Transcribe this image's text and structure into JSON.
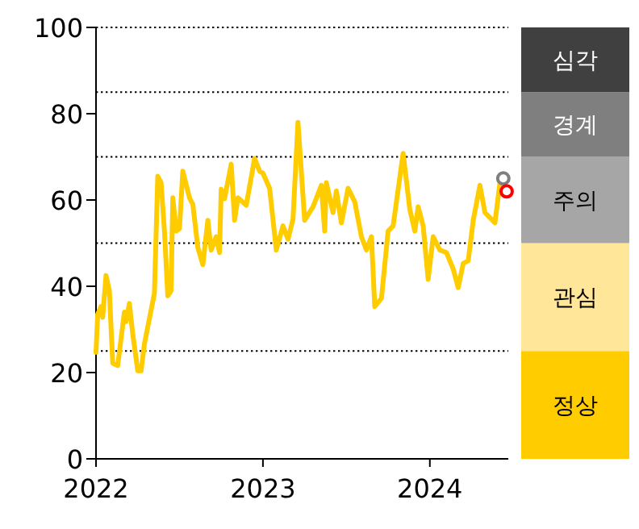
{
  "chart_data": [
    {
      "type": "line",
      "xlim": [
        2022,
        2024.47
      ],
      "xticks": [
        2022,
        2023,
        2024
      ],
      "ylim": [
        0,
        100
      ],
      "yticks": [
        0,
        20,
        40,
        60,
        80,
        100
      ],
      "line_style": "solid",
      "series": [
        {
          "color": "#ffcc00",
          "x": [
            2022.0,
            2022.01,
            2022.03,
            2022.04,
            2022.06,
            2022.08,
            2022.1,
            2022.13,
            2022.17,
            2022.18,
            2022.2,
            2022.22,
            2022.25,
            2022.27,
            2022.29,
            2022.35,
            2022.37,
            2022.39,
            2022.41,
            2022.43,
            2022.45,
            2022.46,
            2022.48,
            2022.5,
            2022.52,
            2022.56,
            2022.58,
            2022.61,
            2022.64,
            2022.67,
            2022.69,
            2022.72,
            2022.74,
            2022.75,
            2022.77,
            2022.81,
            2022.83,
            2022.85,
            2022.9,
            2022.95,
            2022.98,
            2023.0,
            2023.04,
            2023.08,
            2023.12,
            2023.15,
            2023.18,
            2023.21,
            2023.25,
            2023.29,
            2023.3,
            2023.35,
            2023.37,
            2023.38,
            2023.42,
            2023.44,
            2023.47,
            2023.51,
            2023.55,
            2023.59,
            2023.62,
            2023.65,
            2023.67,
            2023.71,
            2023.75,
            2023.78,
            2023.84,
            2023.88,
            2023.91,
            2023.93,
            2023.96,
            2023.99,
            2024.02,
            2024.06,
            2024.1,
            2024.14,
            2024.17,
            2024.2,
            2024.23,
            2024.26,
            2024.3,
            2024.33,
            2024.36,
            2024.39,
            2024.42
          ],
          "values": [
            24.7,
            33.5,
            35.3,
            32.8,
            42.5,
            39,
            22.2,
            21.6,
            34,
            31.8,
            36,
            29,
            20.4,
            20.4,
            26.6,
            38.4,
            65.5,
            64,
            52.8,
            37.8,
            39,
            60.5,
            52.8,
            53.4,
            66.7,
            60.5,
            59,
            49,
            45,
            55.3,
            48.4,
            51.5,
            47.8,
            62.5,
            60.3,
            68.3,
            55.3,
            60.5,
            58.8,
            69.6,
            66.7,
            66.2,
            62.7,
            48.4,
            54,
            50.9,
            55.5,
            78,
            55.3,
            57.8,
            58.4,
            63.4,
            52.8,
            64,
            57.1,
            62.1,
            54.7,
            62.7,
            59.6,
            51.5,
            48.4,
            51.5,
            35.3,
            37.2,
            52.8,
            54,
            70.8,
            57.8,
            52.8,
            58.4,
            54,
            41.6,
            51.5,
            48.4,
            47.8,
            44,
            39.7,
            45.3,
            45.9,
            55.3,
            63.4,
            57.1,
            55.9,
            54.7,
            64
          ]
        },
        {
          "type": "scatter",
          "marker": "circle",
          "color": "#7f7f7f",
          "x": [
            2024.44
          ],
          "values": [
            65
          ]
        },
        {
          "type": "scatter",
          "marker": "circle",
          "color": "#ff0000",
          "x": [
            2024.46
          ],
          "values": [
            62
          ]
        }
      ],
      "ref_lines": [
        {
          "axis": "y",
          "value": 25,
          "line_style": "dotted",
          "color": "#000000"
        },
        {
          "axis": "y",
          "value": 50,
          "line_style": "dotted",
          "color": "#000000"
        },
        {
          "axis": "y",
          "value": 70,
          "line_style": "dotted",
          "color": "#000000"
        },
        {
          "axis": "y",
          "value": 85,
          "line_style": "dotted",
          "color": "#000000"
        },
        {
          "axis": "y",
          "value": 100,
          "line_style": "dotted",
          "color": "#000000"
        }
      ]
    },
    {
      "type": "bar",
      "stacked": true,
      "categories": [
        null
      ],
      "ylim": [
        0,
        100
      ],
      "series": [
        {
          "name": "정상",
          "color": "#ffcc00",
          "values": [
            25
          ]
        },
        {
          "name": "관심",
          "color": "#ffe699",
          "values": [
            25
          ]
        },
        {
          "name": "주의",
          "color": "#a6a6a6",
          "values": [
            20
          ]
        },
        {
          "name": "경계",
          "color": "#7f7f7f",
          "values": [
            15
          ]
        },
        {
          "name": "심각",
          "color": "#404040",
          "values": [
            15
          ]
        }
      ]
    }
  ]
}
